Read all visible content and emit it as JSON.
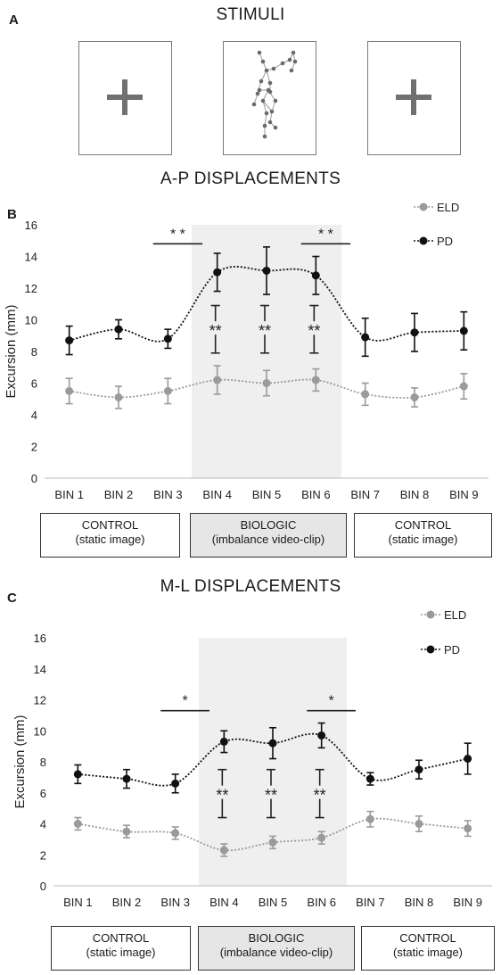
{
  "panel_a": {
    "letter": "A",
    "title": "STIMULI"
  },
  "panel_b": {
    "letter": "B",
    "title": "A-P DISPLACEMENTS"
  },
  "panel_c": {
    "letter": "C",
    "title": "M-L DISPLACEMENTS"
  },
  "conditions": [
    {
      "name": "CONTROL",
      "detail": "(static image)"
    },
    {
      "name": "BIOLOGIC",
      "detail": "(imbalance video-clip)"
    },
    {
      "name": "CONTROL",
      "detail": "(static image)"
    }
  ],
  "colors": {
    "eld": "#9a9a9a",
    "pd": "#111111",
    "shade": "#efefef"
  },
  "chart_data": [
    {
      "type": "line",
      "title": "A-P DISPLACEMENTS",
      "ylabel": "Excursion (mm)",
      "xlabel": "",
      "categories": [
        "BIN 1",
        "BIN 2",
        "BIN 3",
        "BIN 4",
        "BIN 5",
        "BIN 6",
        "BIN 7",
        "BIN 8",
        "BIN 9"
      ],
      "ylim": [
        0,
        16
      ],
      "yticks": [
        0,
        2,
        4,
        6,
        8,
        10,
        12,
        14,
        16
      ],
      "legend_position": "top-right",
      "shaded_bins": [
        "BIN 4",
        "BIN 6"
      ],
      "series": [
        {
          "name": "ELD",
          "values": [
            5.5,
            5.1,
            5.5,
            6.2,
            6.0,
            6.2,
            5.3,
            5.1,
            5.8
          ],
          "error": [
            0.8,
            0.7,
            0.8,
            0.9,
            0.8,
            0.7,
            0.7,
            0.6,
            0.8
          ]
        },
        {
          "name": "PD",
          "values": [
            8.7,
            9.4,
            8.8,
            13.0,
            13.1,
            12.8,
            8.9,
            9.2,
            9.3
          ],
          "error": [
            0.9,
            0.6,
            0.6,
            1.2,
            1.5,
            1.2,
            1.2,
            1.2,
            1.2
          ]
        }
      ],
      "annotations": [
        {
          "text": "* *",
          "from": "BIN 3",
          "to": "BIN 4",
          "y": 14.8
        },
        {
          "text": "* *",
          "from": "BIN 6",
          "to": "BIN 7",
          "y": 14.8
        },
        {
          "text": "**",
          "bin": "BIN 4",
          "top": 10.9,
          "bottom": 7.9
        },
        {
          "text": "**",
          "bin": "BIN 5",
          "top": 10.9,
          "bottom": 7.9
        },
        {
          "text": "**",
          "bin": "BIN 6",
          "top": 10.9,
          "bottom": 7.9
        }
      ]
    },
    {
      "type": "line",
      "title": "M-L DISPLACEMENTS",
      "ylabel": "Excursion (mm)",
      "xlabel": "",
      "categories": [
        "BIN 1",
        "BIN 2",
        "BIN 3",
        "BIN 4",
        "BIN 5",
        "BIN 6",
        "BIN 7",
        "BIN 8",
        "BIN 9"
      ],
      "ylim": [
        0,
        16
      ],
      "yticks": [
        0,
        2,
        4,
        6,
        8,
        10,
        12,
        14,
        16
      ],
      "legend_position": "top-right",
      "shaded_bins": [
        "BIN 4",
        "BIN 6"
      ],
      "series": [
        {
          "name": "ELD",
          "values": [
            4.0,
            3.5,
            3.4,
            2.3,
            2.8,
            3.1,
            4.3,
            4.0,
            3.7
          ],
          "error": [
            0.4,
            0.4,
            0.4,
            0.4,
            0.4,
            0.4,
            0.5,
            0.5,
            0.5
          ]
        },
        {
          "name": "PD",
          "values": [
            7.2,
            6.9,
            6.6,
            9.3,
            9.2,
            9.7,
            6.9,
            7.5,
            8.2
          ],
          "error": [
            0.6,
            0.6,
            0.6,
            0.7,
            1.0,
            0.8,
            0.4,
            0.6,
            1.0
          ]
        }
      ],
      "annotations": [
        {
          "text": "*",
          "from": "BIN 3",
          "to": "BIN 4",
          "y": 11.3
        },
        {
          "text": "*",
          "from": "BIN 6",
          "to": "BIN 7",
          "y": 11.3
        },
        {
          "text": "**",
          "bin": "BIN 4",
          "top": 7.5,
          "bottom": 4.4
        },
        {
          "text": "**",
          "bin": "BIN 5",
          "top": 7.5,
          "bottom": 4.4
        },
        {
          "text": "**",
          "bin": "BIN 6",
          "top": 7.5,
          "bottom": 4.4
        }
      ]
    }
  ]
}
